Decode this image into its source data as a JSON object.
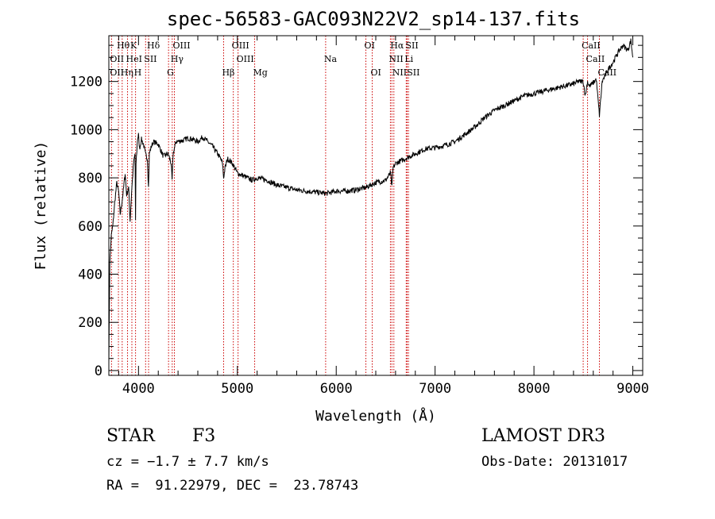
{
  "chart_data": {
    "type": "line",
    "title": "spec-56583-GAC093N22V2_sp14-137.fits",
    "xlabel": "Wavelength (Å)",
    "ylabel": "Flux (relative)",
    "xlim": [
      3700,
      9100
    ],
    "ylim": [
      -20,
      1390
    ],
    "x_ticks": [
      4000,
      5000,
      6000,
      7000,
      8000,
      9000
    ],
    "x_tick_labels": [
      "4000",
      "5000",
      "6000",
      "7000",
      "8000",
      "9000"
    ],
    "y_ticks": [
      0,
      200,
      400,
      600,
      800,
      1000,
      1200
    ],
    "y_tick_labels": [
      "0",
      "200",
      "400",
      "600",
      "800",
      "1000",
      "1200"
    ],
    "grid": false,
    "series": [
      {
        "x": [
          3700,
          3710,
          3725,
          3740,
          3760,
          3780,
          3800,
          3815,
          3830,
          3850,
          3865,
          3880,
          3900,
          3915,
          3930,
          3950,
          3965,
          3970,
          3975,
          3990,
          4000,
          4010,
          4030,
          4050,
          4070,
          4090,
          4101,
          4110,
          4130,
          4150,
          4200,
          4250,
          4300,
          4330,
          4340,
          4350,
          4380,
          4450,
          4500,
          4550,
          4600,
          4650,
          4700,
          4750,
          4800,
          4830,
          4850,
          4861,
          4875,
          4900,
          4950,
          5000,
          5050,
          5100,
          5150,
          5200,
          5300,
          5400,
          5500,
          5600,
          5700,
          5800,
          5900,
          6000,
          6100,
          6200,
          6300,
          6400,
          6500,
          6550,
          6563,
          6575,
          6600,
          6650,
          6700,
          6800,
          6900,
          7000,
          7100,
          7200,
          7300,
          7400,
          7500,
          7600,
          7700,
          7800,
          7900,
          8000,
          8100,
          8200,
          8300,
          8400,
          8450,
          8498,
          8520,
          8542,
          8560,
          8600,
          8630,
          8662,
          8690,
          8750,
          8800,
          8850,
          8900,
          8950,
          8980,
          9000
        ],
        "values": [
          40,
          450,
          560,
          600,
          700,
          780,
          740,
          650,
          690,
          760,
          820,
          730,
          760,
          620,
          740,
          860,
          900,
          620,
          860,
          960,
          980,
          920,
          960,
          940,
          900,
          880,
          760,
          900,
          930,
          950,
          940,
          890,
          900,
          860,
          790,
          900,
          950,
          955,
          965,
          960,
          950,
          970,
          950,
          930,
          900,
          880,
          860,
          800,
          840,
          880,
          860,
          820,
          810,
          800,
          790,
          800,
          790,
          770,
          760,
          750,
          745,
          740,
          735,
          745,
          745,
          750,
          760,
          780,
          790,
          820,
          760,
          840,
          860,
          870,
          880,
          900,
          920,
          925,
          935,
          950,
          980,
          1010,
          1050,
          1080,
          1100,
          1120,
          1140,
          1150,
          1160,
          1170,
          1180,
          1190,
          1200,
          1200,
          1140,
          1200,
          1180,
          1195,
          1210,
          1060,
          1200,
          1250,
          1280,
          1320,
          1350,
          1330,
          1370,
          1300
        ]
      }
    ],
    "lines": {
      "row1": [
        {
          "x": 3797,
          "label": "Hθ"
        },
        {
          "x": 3933,
          "label": "K"
        },
        {
          "x": 4102,
          "label": "Hδ"
        },
        {
          "x": 4363,
          "label": "OIII"
        },
        {
          "x": 4959,
          "label": "OIII"
        },
        {
          "x": 6300,
          "label": "OI"
        },
        {
          "x": 6563,
          "label": "Hα"
        },
        {
          "x": 6717,
          "label": "SII"
        },
        {
          "x": 8498,
          "label": "CaII"
        }
      ],
      "row2": [
        {
          "x": 3727,
          "label": "OII"
        },
        {
          "x": 3889,
          "label": "HeI"
        },
        {
          "x": 4072,
          "label": "SII"
        },
        {
          "x": 4341,
          "label": "Hγ"
        },
        {
          "x": 5007,
          "label": "OIII"
        },
        {
          "x": 5893,
          "label": "Na"
        },
        {
          "x": 6548,
          "label": "NII"
        },
        {
          "x": 6708,
          "label": "Li"
        },
        {
          "x": 8542,
          "label": "CaII"
        }
      ],
      "row3": [
        {
          "x": 3727,
          "label": "OII"
        },
        {
          "x": 3835,
          "label": "Hη"
        },
        {
          "x": 3970,
          "label": "H"
        },
        {
          "x": 4304,
          "label": "G"
        },
        {
          "x": 4861,
          "label": "Hβ"
        },
        {
          "x": 5175,
          "label": "Mg"
        },
        {
          "x": 6364,
          "label": "OI"
        },
        {
          "x": 6583,
          "label": "NII"
        },
        {
          "x": 6731,
          "label": "SII"
        },
        {
          "x": 8662,
          "label": "CaII"
        }
      ]
    }
  },
  "info": {
    "class": "STAR",
    "subclass": "F3",
    "survey": "LAMOST DR3",
    "redshift": "cz = −1.7 ± 7.7 km/s",
    "obs_date": "Obs-Date: 20131017",
    "coords": "RA =  91.22979, DEC =  23.78743"
  }
}
